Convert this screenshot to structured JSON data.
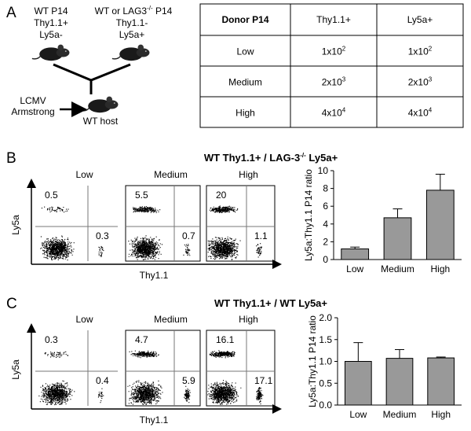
{
  "panel_a": {
    "letter": "A",
    "donor_left": [
      "WT P14",
      "Thy1.1+",
      "Ly5a-"
    ],
    "donor_right": {
      "line1": "WT or LAG3",
      "line1_sup": "-/-",
      "line1_end": " P14",
      "line2": "Thy1.1-",
      "line3": "Ly5a+"
    },
    "infection": [
      "LCMV",
      "Armstrong"
    ],
    "host": "WT host",
    "table": {
      "header": [
        "Donor P14",
        "Thy1.1+",
        "Ly5a+"
      ],
      "rows": [
        [
          "Low",
          {
            "base": "1x10",
            "exp": "2"
          },
          {
            "base": "1x10",
            "exp": "2"
          }
        ],
        [
          "Medium",
          {
            "base": "2x10",
            "exp": "3"
          },
          {
            "base": "2x10",
            "exp": "3"
          }
        ],
        [
          "High",
          {
            "base": "4x10",
            "exp": "4"
          },
          {
            "base": "4x10",
            "exp": "4"
          }
        ]
      ]
    }
  },
  "panel_b": {
    "letter": "B",
    "title": "WT Thy1.1+ / LAG-3",
    "title_sup": "-/-",
    "title_end": " Ly5a+",
    "flow": {
      "y_label": "Ly5a",
      "x_label": "Thy1.1",
      "plots": [
        {
          "label": "Low",
          "upper_left": 0.5,
          "lower_right": 0.3
        },
        {
          "label": "Medium",
          "upper_left": 5.5,
          "lower_right": 0.7
        },
        {
          "label": "High",
          "upper_left": 20,
          "lower_right": 1.1
        }
      ]
    },
    "chart_data": {
      "type": "bar",
      "ylabel": "Ly5a:Thy1.1 P14 ratio",
      "categories": [
        "Low",
        "Medium",
        "High"
      ],
      "values": [
        1.2,
        4.7,
        7.8
      ],
      "errors": [
        0.2,
        1.0,
        1.8
      ],
      "color": "#999999",
      "ylim": [
        0,
        10
      ],
      "yticks": [
        0,
        2,
        4,
        6,
        8,
        10
      ]
    }
  },
  "panel_c": {
    "letter": "C",
    "title": "WT Thy1.1+ / WT Ly5a+",
    "flow": {
      "y_label": "Ly5a",
      "x_label": "Thy1.1",
      "plots": [
        {
          "label": "Low",
          "upper_left": 0.3,
          "lower_right": 0.4
        },
        {
          "label": "Medium",
          "upper_left": 4.7,
          "lower_right": 5.9
        },
        {
          "label": "High",
          "upper_left": 16.1,
          "lower_right": 17.1
        }
      ]
    },
    "chart_data": {
      "type": "bar",
      "ylabel": "Ly5a:Thy1.1 P14 ratio",
      "categories": [
        "Low",
        "Medium",
        "High"
      ],
      "values": [
        1.0,
        1.07,
        1.08
      ],
      "errors": [
        0.43,
        0.2,
        0.02
      ],
      "color": "#999999",
      "ylim": [
        0,
        2
      ],
      "yticks": [
        {
          "value": 0,
          "label": "0.0"
        },
        {
          "value": 0.5,
          "label": "0.5"
        },
        {
          "value": 1,
          "label": "1.0"
        },
        {
          "value": 1.5,
          "label": "1.5"
        },
        {
          "value": 2,
          "label": "2.0"
        }
      ]
    }
  }
}
